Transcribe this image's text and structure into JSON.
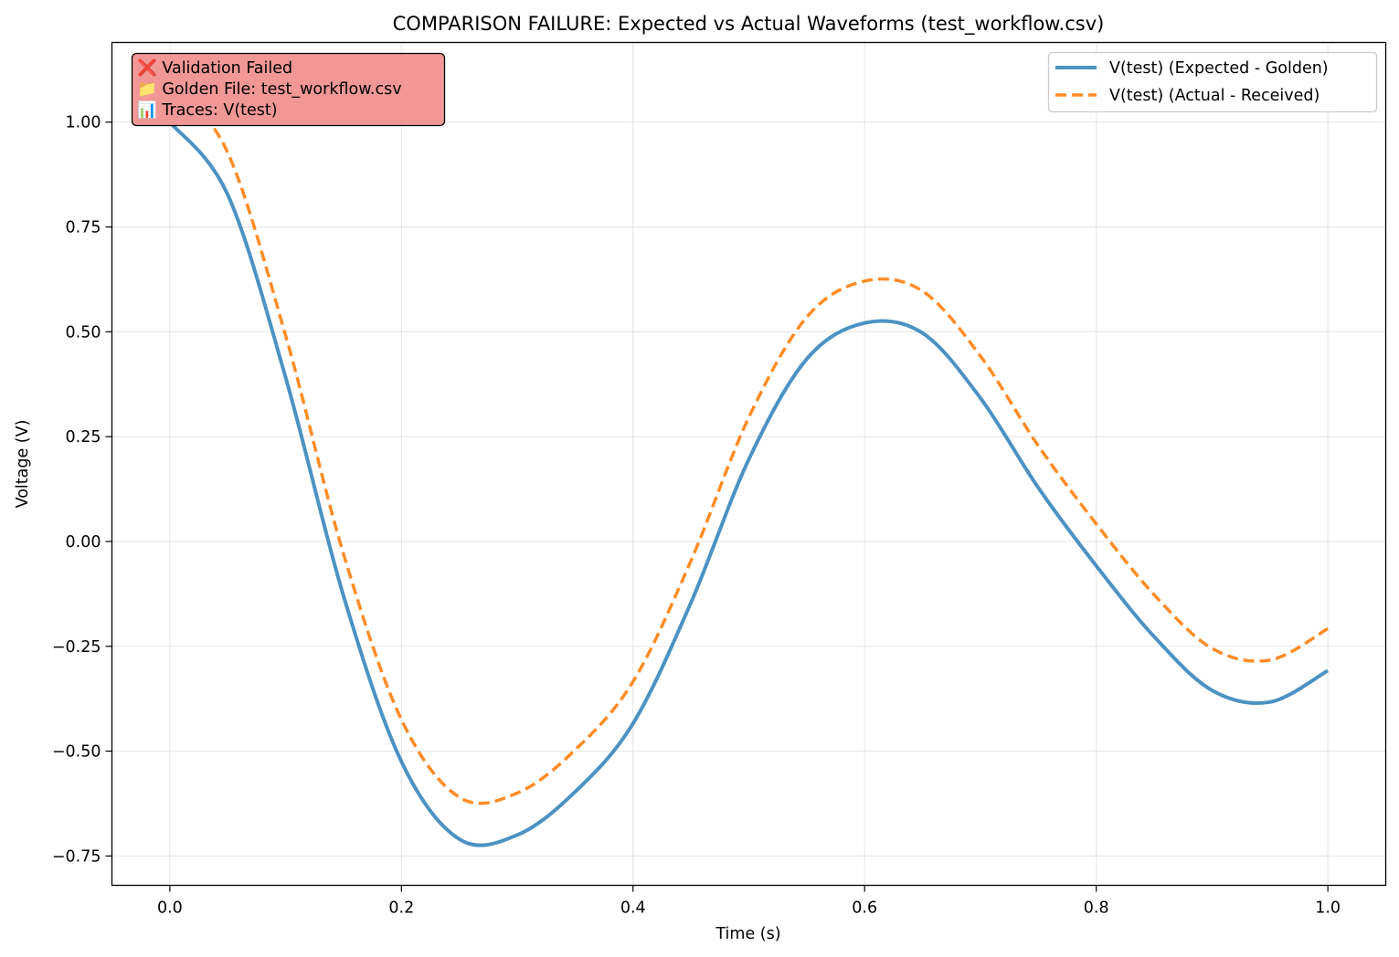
{
  "chart_data": {
    "type": "line",
    "title": "COMPARISON FAILURE: Expected vs Actual Waveforms (test_workflow.csv)",
    "xlabel": "Time (s)",
    "ylabel": "Voltage (V)",
    "xlim": [
      -0.05,
      1.05
    ],
    "ylim": [
      -0.82,
      1.19
    ],
    "xticks": [
      0.0,
      0.2,
      0.4,
      0.6,
      0.8,
      1.0
    ],
    "xtick_labels": [
      "0.0",
      "0.2",
      "0.4",
      "0.6",
      "0.8",
      "1.0"
    ],
    "yticks": [
      -0.75,
      -0.5,
      -0.25,
      0.0,
      0.25,
      0.5,
      0.75,
      1.0
    ],
    "ytick_labels": [
      "−0.75",
      "−0.50",
      "−0.25",
      "0.00",
      "0.25",
      "0.50",
      "0.75",
      "1.00"
    ],
    "grid": true,
    "legend_position": "top-right",
    "x": [
      0.0,
      0.05,
      0.1,
      0.15,
      0.2,
      0.25,
      0.3,
      0.35,
      0.4,
      0.45,
      0.5,
      0.55,
      0.6,
      0.65,
      0.7,
      0.75,
      0.8,
      0.85,
      0.9,
      0.95,
      1.0
    ],
    "series": [
      {
        "name": "V(test) (Expected - Golden)",
        "color": "#1f77b4",
        "style": "solid",
        "values": [
          1.0,
          0.827,
          0.391,
          -0.13,
          -0.525,
          -0.71,
          -0.7,
          -0.597,
          -0.434,
          -0.146,
          0.196,
          0.435,
          0.521,
          0.497,
          0.342,
          0.128,
          -0.058,
          -0.227,
          -0.355,
          -0.383,
          -0.308
        ]
      },
      {
        "name": "V(test) (Actual - Received)",
        "color": "#ff7f0e",
        "style": "dashed",
        "values": [
          1.1,
          0.927,
          0.491,
          -0.03,
          -0.425,
          -0.61,
          -0.6,
          -0.497,
          -0.334,
          -0.046,
          0.296,
          0.535,
          0.621,
          0.597,
          0.442,
          0.228,
          0.042,
          -0.127,
          -0.255,
          -0.283,
          -0.208
        ]
      }
    ]
  },
  "status_box": {
    "line1": "❌ Validation Failed",
    "line2": "📁 Golden File: test_workflow.csv",
    "line3": "📊 Traces: V(test)",
    "background": "#f19896"
  }
}
